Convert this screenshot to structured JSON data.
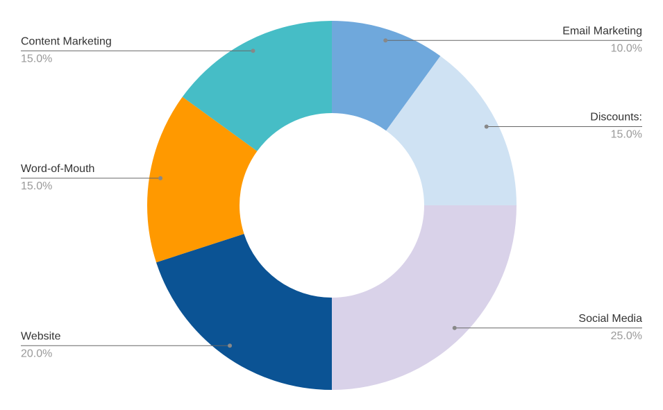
{
  "chart_data": {
    "type": "pie",
    "categories": [
      "Email Marketing",
      "Discounts:",
      "Social Media",
      "Website",
      "Word-of-Mouth",
      "Content Marketing"
    ],
    "values": [
      10,
      15,
      25,
      20,
      15,
      15
    ],
    "value_labels": [
      "10.0%",
      "15.0%",
      "25.0%",
      "20.0%",
      "15.0%",
      "15.0%"
    ],
    "colors": [
      "#6fa8dc",
      "#cfe2f3",
      "#d9d2e9",
      "#0b5394",
      "#ff9900",
      "#46bdc6"
    ]
  }
}
